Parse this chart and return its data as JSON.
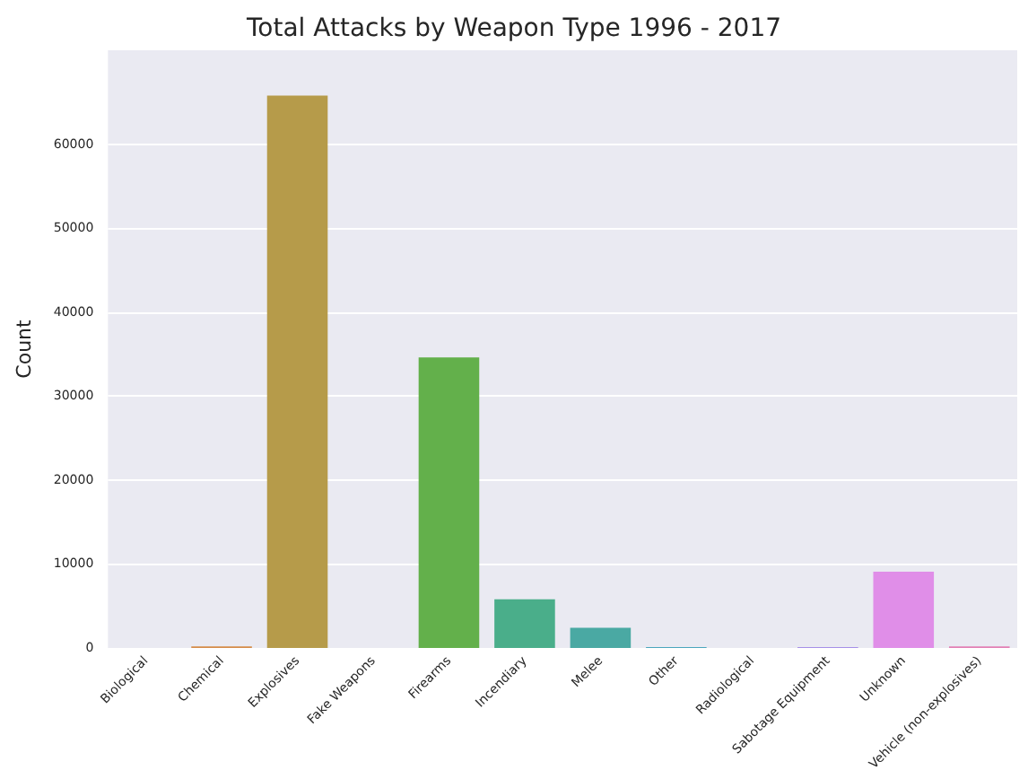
{
  "chart_data": {
    "type": "bar",
    "title": "Total Attacks by Weapon Type 1996 - 2017",
    "ylabel": "Count",
    "categories": [
      "Biological",
      "Chemical",
      "Explosives",
      "Fake Weapons",
      "Firearms",
      "Incendiary",
      "Melee",
      "Other",
      "Radiological",
      "Sabotage Equipment",
      "Unknown",
      "Vehicle (non-explosives)"
    ],
    "values": [
      0,
      200,
      65800,
      0,
      34600,
      5800,
      2400,
      100,
      0,
      100,
      9100,
      200
    ],
    "colors": [
      "#e5788a",
      "#d58c49",
      "#b69b4a",
      "#97a243",
      "#63b04b",
      "#4aae8a",
      "#4aa9a3",
      "#4ba6bd",
      "#6e9be0",
      "#a58fe8",
      "#e08ee8",
      "#e27fb4"
    ],
    "ylim": [
      0,
      71200
    ],
    "yticks": [
      0,
      10000,
      20000,
      30000,
      40000,
      50000,
      60000
    ],
    "grid": "y"
  }
}
